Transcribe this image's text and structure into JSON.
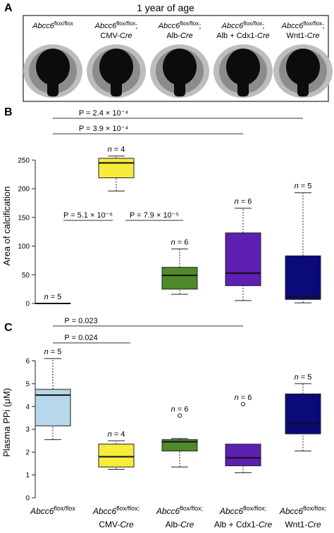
{
  "panel_a": {
    "letter": "A",
    "title": "1 year of age",
    "genotypes": [
      {
        "gene": "Abcc6",
        "sup": "flox/flox",
        "cre_prefix": "",
        "cre": ""
      },
      {
        "gene": "Abcc6",
        "sup": "flox/flox",
        "sep": ";",
        "cre_prefix": "CMV-",
        "cre": "Cre"
      },
      {
        "gene": "Abcc6",
        "sup": "flox/flox",
        "sep": ";",
        "cre_prefix": "Alb-",
        "cre": "Cre"
      },
      {
        "gene": "Abcc6",
        "sup": "flox/flox",
        "sep": ";",
        "cre_prefix": "Alb + Cdx1-",
        "cre": "Cre"
      },
      {
        "gene": "Abcc6",
        "sup": "flox/flox",
        "sep": ";",
        "cre_prefix": "Wnt1-",
        "cre": "Cre"
      }
    ]
  },
  "chart_data": [
    {
      "panel": "B",
      "type": "boxplot",
      "ylabel": "Area of calcification",
      "ylim": [
        0,
        270
      ],
      "yticks": [
        0,
        50,
        100,
        150,
        200,
        250
      ],
      "colors": [
        "#1a1a1a",
        "#f5ec3c",
        "#4e8a2a",
        "#5e1fb3",
        "#0a0a7a"
      ],
      "boxes": [
        {
          "n_label": "n = 5",
          "min": 0,
          "q1": 0,
          "median": 0,
          "q3": 0,
          "max": 0,
          "outliers": []
        },
        {
          "n_label": "n = 4",
          "min": 196,
          "q1": 219,
          "median": 245,
          "q3": 253,
          "max": 257,
          "outliers": []
        },
        {
          "n_label": "n = 6",
          "min": 16,
          "q1": 25,
          "median": 49,
          "q3": 63,
          "max": 95,
          "outliers": []
        },
        {
          "n_label": "n = 6",
          "min": 5,
          "q1": 31,
          "median": 53,
          "q3": 123,
          "max": 166,
          "outliers": []
        },
        {
          "n_label": "n = 5",
          "min": 1,
          "q1": 7,
          "median": 12,
          "q3": 83,
          "max": 193,
          "outliers": []
        }
      ],
      "comparisons": [
        {
          "label": "P = 2.4 × 10⁻⁴",
          "from": 1,
          "to": 5
        },
        {
          "label": "P = 3.9 × 10⁻⁴",
          "from": 1,
          "to": 4
        },
        {
          "label": "P = 5.1 × 10⁻⁶",
          "from": 1,
          "to": 2
        },
        {
          "label": "P = 7.9 × 10⁻⁵",
          "from": 2,
          "to": 3
        }
      ]
    },
    {
      "panel": "C",
      "type": "boxplot",
      "ylabel": "Plasma PPi (μM)",
      "ylim": [
        0,
        6.6
      ],
      "yticks": [
        0,
        1,
        2,
        3,
        4,
        5,
        6
      ],
      "colors": [
        "#b7d7ea",
        "#f5ec3c",
        "#4e8a2a",
        "#5e1fb3",
        "#0a0a7a"
      ],
      "boxes": [
        {
          "n_label": "n = 5",
          "min": 2.55,
          "q1": 3.15,
          "median": 4.5,
          "q3": 4.75,
          "max": 6.1,
          "outliers": []
        },
        {
          "n_label": "n = 4",
          "min": 1.25,
          "q1": 1.35,
          "median": 1.8,
          "q3": 2.35,
          "max": 2.5,
          "outliers": []
        },
        {
          "n_label": "n = 6",
          "min": 1.35,
          "q1": 2.05,
          "median": 2.45,
          "q3": 2.55,
          "max": 2.6,
          "outliers": [
            3.6
          ]
        },
        {
          "n_label": "n = 6",
          "min": 1.1,
          "q1": 1.4,
          "median": 1.75,
          "q3": 2.35,
          "max": 2.35,
          "outliers": [
            4.1
          ]
        },
        {
          "n_label": "n = 5",
          "min": 2.05,
          "q1": 2.8,
          "median": 3.25,
          "q3": 4.55,
          "max": 5.0,
          "outliers": []
        }
      ],
      "comparisons": [
        {
          "label": "P = 0.023",
          "from": 1,
          "to": 4
        },
        {
          "label": "P = 0.024",
          "from": 1,
          "to": 2
        }
      ],
      "xlabels": [
        {
          "gene": "Abcc6",
          "sup": "flox/flox",
          "line2": "",
          "cre": ""
        },
        {
          "gene": "Abcc6",
          "sup": "flox/flox;",
          "line2": "CMV-",
          "cre": "Cre"
        },
        {
          "gene": "Abcc6",
          "sup": "flox/flox;",
          "line2": "Alb-",
          "cre": "Cre"
        },
        {
          "gene": "Abcc6",
          "sup": "flox/flox;",
          "line2": "Alb + Cdx1-",
          "cre": "Cre"
        },
        {
          "gene": "Abcc6",
          "sup": "flox/flox;",
          "line2": "Wnt1-",
          "cre": "Cre"
        }
      ]
    }
  ]
}
